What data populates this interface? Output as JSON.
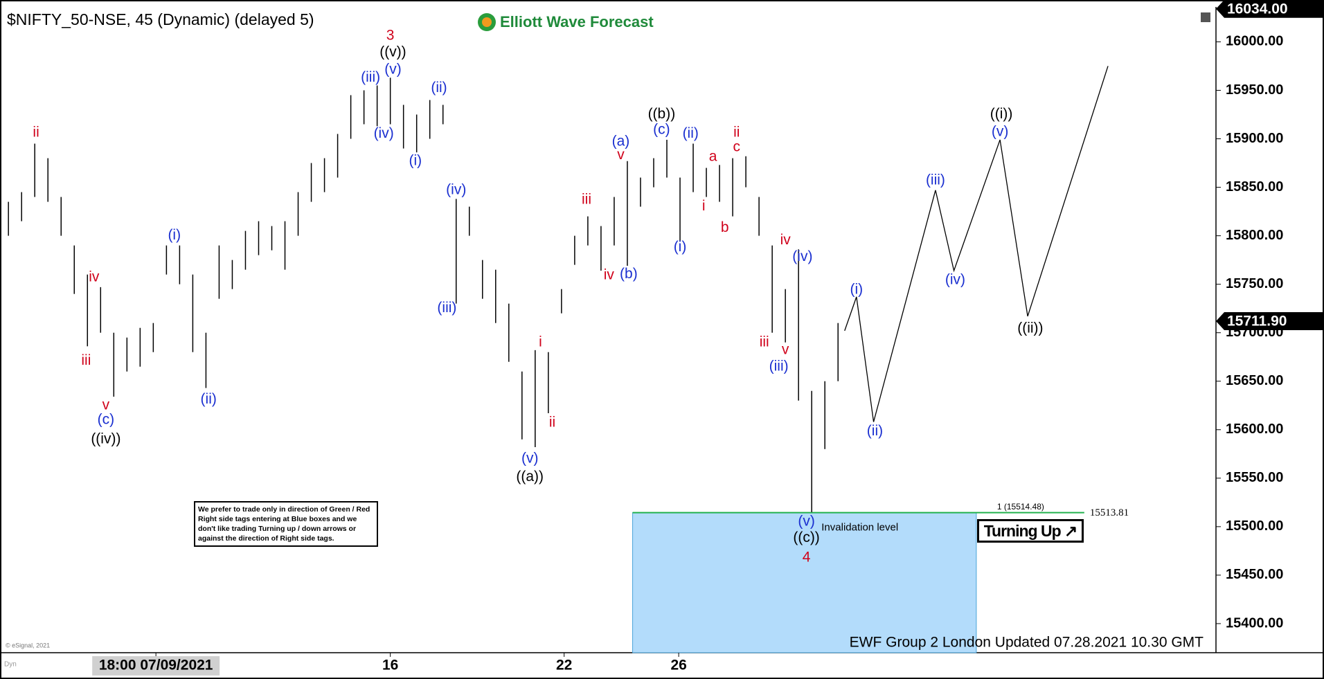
{
  "chart_data": {
    "type": "ohlc",
    "title": "$NIFTY_50-NSE, 45 (Dynamic) (delayed 5)",
    "logo": "Elliott Wave Forecast",
    "footer": "EWF Group 2 London Updated 07.28.2021 10.30 GMT",
    "copyright": "© eSignal, 2021",
    "corner": "Dyn",
    "disclaimer": "We prefer to trade only in direction of Green / Red Right side tags entering at Blue boxes and we don't like trading Turning up / down arrows or against the direction of Right side tags.",
    "bar_color": "#000000",
    "x": [
      0,
      1,
      2,
      3,
      4,
      5,
      6,
      7,
      8,
      9,
      10,
      11,
      12,
      13,
      14,
      15,
      16,
      17,
      18,
      19,
      20,
      21,
      22,
      23,
      24,
      25,
      26,
      27,
      28,
      29,
      30,
      31,
      32,
      33,
      34,
      35,
      36,
      37,
      38,
      39,
      40,
      41,
      42,
      43,
      44,
      45,
      46,
      47,
      48,
      49,
      50,
      51,
      52,
      53,
      54,
      55,
      56,
      57,
      58,
      59,
      60,
      61,
      62,
      63
    ],
    "high": [
      15835,
      15845,
      15895,
      15880,
      15840,
      15790,
      15760,
      15747,
      15700,
      15695,
      15705,
      15710,
      15790,
      15790,
      15760,
      15700,
      15790,
      15775,
      15805,
      15815,
      15810,
      15815,
      15845,
      15875,
      15880,
      15905,
      15945,
      15950,
      15955,
      15963,
      15935,
      15925,
      15940,
      15935,
      15838,
      15830,
      15775,
      15765,
      15730,
      15660,
      15682,
      15680,
      15745,
      15800,
      15820,
      15810,
      15840,
      15877,
      15860,
      15880,
      15899,
      15860,
      15895,
      15870,
      15873,
      15880,
      15882,
      15840,
      15790,
      15745,
      15786,
      15640,
      15650,
      15710
    ],
    "low": [
      15800,
      15815,
      15840,
      15835,
      15800,
      15740,
      15686,
      15700,
      15634,
      15660,
      15665,
      15680,
      15760,
      15750,
      15680,
      15643,
      15735,
      15745,
      15765,
      15780,
      15785,
      15765,
      15800,
      15835,
      15845,
      15860,
      15900,
      15915,
      15913,
      15915,
      15890,
      15886,
      15900,
      15915,
      15730,
      15800,
      15735,
      15710,
      15670,
      15590,
      15582,
      15617,
      15720,
      15770,
      15790,
      15764,
      15790,
      15769,
      15830,
      15850,
      15860,
      15795,
      15845,
      15840,
      15835,
      15820,
      15850,
      15800,
      15700,
      15690,
      15630,
      15515,
      15580,
      15650
    ],
    "xlim": [
      -0.64,
      91.7
    ],
    "xticks": [
      {
        "value": 11.2,
        "label": "18:00 07/09/2021"
      },
      {
        "value": 29,
        "label": "16"
      },
      {
        "value": 42.2,
        "label": "22"
      },
      {
        "value": 50.9,
        "label": "26"
      }
    ],
    "ylim": [
      15370,
      16036
    ],
    "yticks": [
      {
        "value": 15400,
        "label": "15400.00"
      },
      {
        "value": 15450,
        "label": "15450.00"
      },
      {
        "value": 15500,
        "label": "15500.00"
      },
      {
        "value": 15550,
        "label": "15550.00"
      },
      {
        "value": 15600,
        "label": "15600.00"
      },
      {
        "value": 15650,
        "label": "15650.00"
      },
      {
        "value": 15700,
        "label": "15700.00"
      },
      {
        "value": 15750,
        "label": "15750.00"
      },
      {
        "value": 15800,
        "label": "15800.00"
      },
      {
        "value": 15850,
        "label": "15850.00"
      },
      {
        "value": 15900,
        "label": "15900.00"
      },
      {
        "value": 15950,
        "label": "15950.00"
      },
      {
        "value": 16000,
        "label": "16000.00"
      }
    ],
    "price_tags": [
      {
        "value": 16034,
        "label": "16034.00"
      },
      {
        "value": 15711.9,
        "label": "15711.90"
      }
    ],
    "projection": {
      "x": [
        63.5,
        64.4,
        65.7,
        70.4,
        71.8,
        75.3,
        77.4,
        83.5
      ],
      "y": [
        15702,
        15737,
        15608,
        15847,
        15764,
        15899,
        15717,
        15975
      ],
      "color": "#000000"
    },
    "blue_box": {
      "x": [
        47.4,
        73.5
      ],
      "top": 15514.48,
      "color": "#b3dcfb",
      "edge": "#4aa3d9",
      "label": "Invalidation level"
    },
    "invalidation": {
      "value": 15514.48,
      "label": "1 (15514.48)",
      "x_end": 81.7,
      "color": "#22b14c"
    },
    "invalidation_price": {
      "value": 15513.81,
      "label": "15513.81"
    },
    "signal": "Turning Up",
    "annotations": [
      {
        "text": "ii",
        "color": "#d0021b",
        "x": 2.1,
        "y": 15906
      },
      {
        "text": "iv",
        "color": "#d0021b",
        "x": 6.5,
        "y": 15757
      },
      {
        "text": "iii",
        "color": "#d0021b",
        "x": 5.9,
        "y": 15671
      },
      {
        "text": "v",
        "color": "#d0021b",
        "x": 7.4,
        "y": 15625
      },
      {
        "text": "(c)",
        "color": "#1a2fd0",
        "x": 7.4,
        "y": 15610
      },
      {
        "text": "((iv))",
        "color": "#000000",
        "x": 7.4,
        "y": 15590
      },
      {
        "text": "(i)",
        "color": "#1a2fd0",
        "x": 12.6,
        "y": 15800
      },
      {
        "text": "(ii)",
        "color": "#1a2fd0",
        "x": 15.2,
        "y": 15631
      },
      {
        "text": "3",
        "color": "#d0021b",
        "x": 29,
        "y": 16006
      },
      {
        "text": "((v))",
        "color": "#000000",
        "x": 29.2,
        "y": 15989
      },
      {
        "text": "(v)",
        "color": "#1a2fd0",
        "x": 29.2,
        "y": 15971
      },
      {
        "text": "(iii)",
        "color": "#1a2fd0",
        "x": 27.5,
        "y": 15963
      },
      {
        "text": "(iv)",
        "color": "#1a2fd0",
        "x": 28.5,
        "y": 15905
      },
      {
        "text": "(ii)",
        "color": "#1a2fd0",
        "x": 32.7,
        "y": 15952
      },
      {
        "text": "(i)",
        "color": "#1a2fd0",
        "x": 30.9,
        "y": 15877
      },
      {
        "text": "(iv)",
        "color": "#1a2fd0",
        "x": 34,
        "y": 15847
      },
      {
        "text": "(iii)",
        "color": "#1a2fd0",
        "x": 33.3,
        "y": 15725
      },
      {
        "text": "i",
        "color": "#d0021b",
        "x": 40.4,
        "y": 15690
      },
      {
        "text": "ii",
        "color": "#d0021b",
        "x": 41.3,
        "y": 15607
      },
      {
        "text": "(v)",
        "color": "#1a2fd0",
        "x": 39.6,
        "y": 15570
      },
      {
        "text": "((a))",
        "color": "#000000",
        "x": 39.6,
        "y": 15551
      },
      {
        "text": "iii",
        "color": "#d0021b",
        "x": 43.9,
        "y": 15837
      },
      {
        "text": "iv",
        "color": "#d0021b",
        "x": 45.6,
        "y": 15759
      },
      {
        "text": "(b)",
        "color": "#1a2fd0",
        "x": 47.1,
        "y": 15760
      },
      {
        "text": "(a)",
        "color": "#1a2fd0",
        "x": 46.5,
        "y": 15897
      },
      {
        "text": "v",
        "color": "#d0021b",
        "x": 46.5,
        "y": 15883
      },
      {
        "text": "((b))",
        "color": "#000000",
        "x": 49.6,
        "y": 15925
      },
      {
        "text": "(c)",
        "color": "#1a2fd0",
        "x": 49.6,
        "y": 15909
      },
      {
        "text": "(ii)",
        "color": "#1a2fd0",
        "x": 51.8,
        "y": 15905
      },
      {
        "text": "(i)",
        "color": "#1a2fd0",
        "x": 51,
        "y": 15788
      },
      {
        "text": "a",
        "color": "#d0021b",
        "x": 53.5,
        "y": 15881
      },
      {
        "text": "i",
        "color": "#d0021b",
        "x": 52.8,
        "y": 15830
      },
      {
        "text": "b",
        "color": "#d0021b",
        "x": 54.4,
        "y": 15808
      },
      {
        "text": "ii",
        "color": "#d0021b",
        "x": 55.3,
        "y": 15906
      },
      {
        "text": "c",
        "color": "#d0021b",
        "x": 55.3,
        "y": 15891
      },
      {
        "text": "iv",
        "color": "#d0021b",
        "x": 59,
        "y": 15795
      },
      {
        "text": "(iv)",
        "color": "#1a2fd0",
        "x": 60.3,
        "y": 15778
      },
      {
        "text": "iii",
        "color": "#d0021b",
        "x": 57.4,
        "y": 15690
      },
      {
        "text": "v",
        "color": "#d0021b",
        "x": 59,
        "y": 15682
      },
      {
        "text": "(iii)",
        "color": "#1a2fd0",
        "x": 58.5,
        "y": 15665
      },
      {
        "text": "(v)",
        "color": "#1a2fd0",
        "x": 60.6,
        "y": 15505
      },
      {
        "text": "((c))",
        "color": "#000000",
        "x": 60.6,
        "y": 15488
      },
      {
        "text": "4",
        "color": "#d0021b",
        "x": 60.6,
        "y": 15468
      },
      {
        "text": "(i)",
        "color": "#1a2fd0",
        "x": 64.4,
        "y": 15744
      },
      {
        "text": "(ii)",
        "color": "#1a2fd0",
        "x": 65.8,
        "y": 15598
      },
      {
        "text": "(iii)",
        "color": "#1a2fd0",
        "x": 70.4,
        "y": 15857
      },
      {
        "text": "(iv)",
        "color": "#1a2fd0",
        "x": 71.9,
        "y": 15754
      },
      {
        "text": "(v)",
        "color": "#1a2fd0",
        "x": 75.3,
        "y": 15907
      },
      {
        "text": "((i))",
        "color": "#000000",
        "x": 75.4,
        "y": 15925
      },
      {
        "text": "((ii))",
        "color": "#000000",
        "x": 77.6,
        "y": 15704
      }
    ]
  }
}
